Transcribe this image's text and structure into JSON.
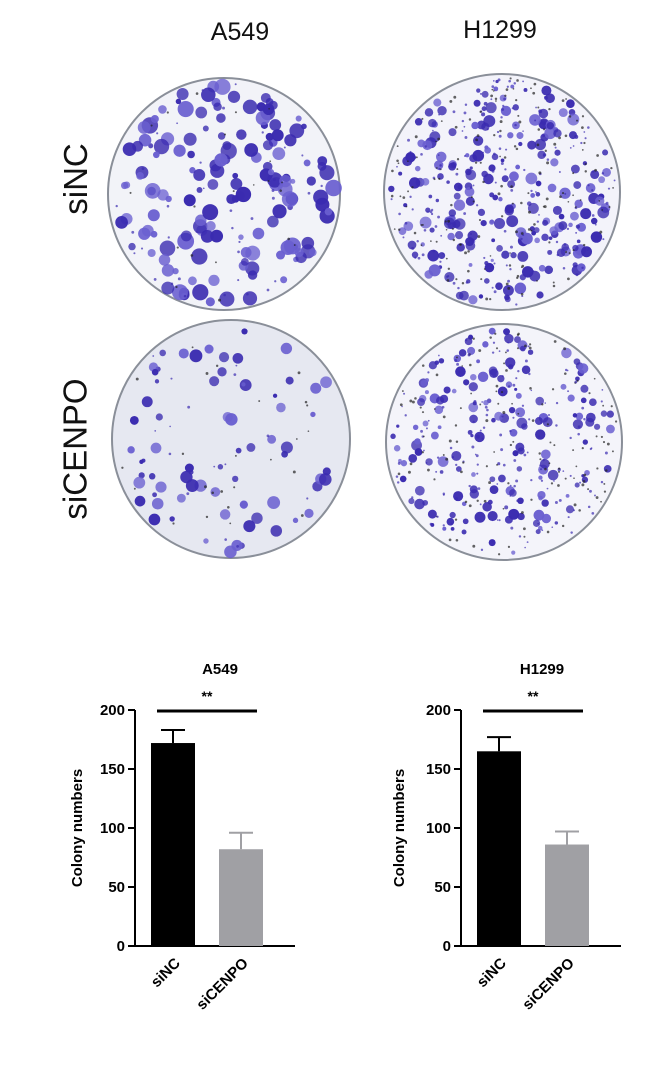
{
  "figure": {
    "column_labels": [
      "A549",
      "H1299"
    ],
    "row_labels": [
      "siNC",
      "siCENPO"
    ],
    "dish_colors": {
      "stain": "#3a2bb0",
      "stain_light": "#6a5fd0",
      "plate": "#eef0f6",
      "rim": "#8a8f99"
    }
  },
  "chart_data": [
    {
      "type": "bar",
      "title": "A549",
      "categories": [
        "siNC",
        "siCENPO"
      ],
      "values": [
        172,
        82
      ],
      "errors": [
        11,
        14
      ],
      "colors": [
        "#000000",
        "#a0a0a4"
      ],
      "ylabel": "Colony numbers",
      "ylim": [
        0,
        200
      ],
      "yticks": [
        "0",
        "50",
        "100",
        "150",
        "200"
      ],
      "significance": "**",
      "grid": false
    },
    {
      "type": "bar",
      "title": "H1299",
      "categories": [
        "siNC",
        "siCENPO"
      ],
      "values": [
        165,
        86
      ],
      "errors": [
        12,
        11
      ],
      "colors": [
        "#000000",
        "#a0a0a4"
      ],
      "ylabel": "Colony numbers",
      "ylim": [
        0,
        200
      ],
      "yticks": [
        "0",
        "50",
        "100",
        "150",
        "200"
      ],
      "significance": "**",
      "grid": false
    }
  ]
}
